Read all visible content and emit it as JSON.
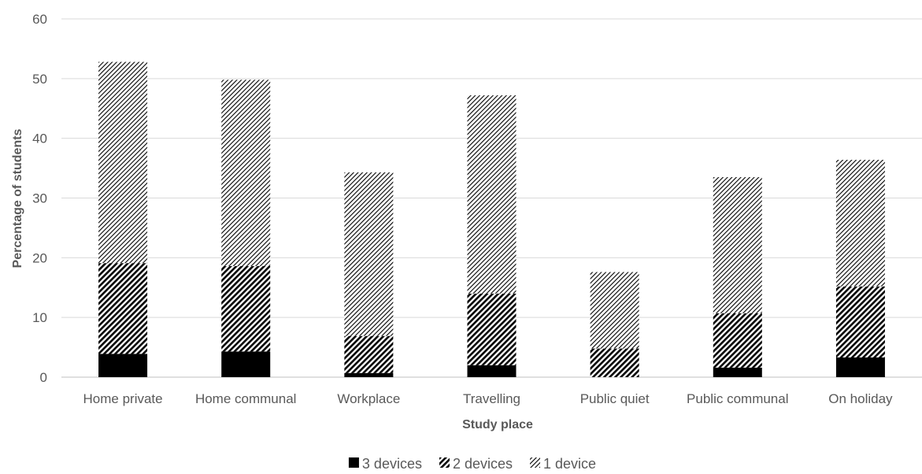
{
  "chart_data": {
    "type": "bar",
    "stacked": true,
    "xlabel": "Study place",
    "ylabel": "Percentage of students",
    "ylim": [
      0,
      60
    ],
    "yticks": [
      0,
      10,
      20,
      30,
      40,
      50,
      60
    ],
    "grid": true,
    "legend_position": "bottom",
    "categories": [
      "Home private",
      "Home communal",
      "Workplace",
      "Travelling",
      "Public quiet",
      "Public communal",
      "On holiday"
    ],
    "series": [
      {
        "name": "3 devices",
        "pattern": "solid",
        "color": "#000000",
        "values": [
          3.9,
          4.3,
          0.7,
          2.0,
          0.0,
          1.6,
          3.3
        ]
      },
      {
        "name": "2 devices",
        "pattern": "dense-hatch",
        "color": "#000000",
        "values": [
          15.2,
          14.3,
          6.2,
          12.0,
          4.8,
          9.1,
          11.9
        ]
      },
      {
        "name": "1 device",
        "pattern": "light-hatch",
        "color": "#000000",
        "values": [
          33.7,
          31.2,
          27.4,
          33.2,
          12.8,
          22.8,
          21.2
        ]
      }
    ]
  }
}
